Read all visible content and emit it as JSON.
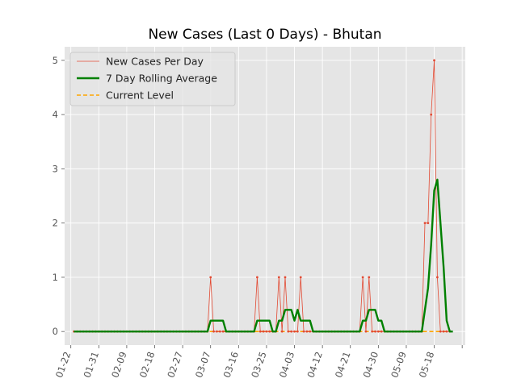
{
  "chart_data": {
    "type": "line",
    "title": "New Cases (Last 0 Days) - Bhutan",
    "xlabel": "",
    "ylabel": "",
    "x_tick_labels": [
      "01-22",
      "01-31",
      "02-09",
      "02-18",
      "02-27",
      "03-07",
      "03-16",
      "03-25",
      "04-03",
      "04-12",
      "04-21",
      "04-30",
      "05-09",
      "05-18"
    ],
    "y_tick_labels": [
      "0",
      "1",
      "2",
      "3",
      "4",
      "5"
    ],
    "x_range_days": [
      -3,
      126
    ],
    "ylim": [
      -0.25,
      5.25
    ],
    "grid": true,
    "legend_position": "upper-left",
    "series": [
      {
        "name": "New Cases Per Day",
        "color": "#e24a33",
        "style": "thin-line-with-dot-markers",
        "start_date": "01-22",
        "values": [
          0,
          0,
          0,
          0,
          0,
          0,
          0,
          0,
          0,
          0,
          0,
          0,
          0,
          0,
          0,
          0,
          0,
          0,
          0,
          0,
          0,
          0,
          0,
          0,
          0,
          0,
          0,
          0,
          0,
          0,
          0,
          0,
          0,
          0,
          0,
          0,
          0,
          0,
          0,
          0,
          0,
          0,
          0,
          0,
          1,
          0,
          0,
          0,
          0,
          0,
          0,
          0,
          0,
          0,
          0,
          0,
          0,
          0,
          0,
          1,
          0,
          0,
          0,
          0,
          0,
          0,
          1,
          0,
          1,
          0,
          0,
          0,
          0,
          1,
          0,
          0,
          0,
          0,
          0,
          0,
          0,
          0,
          0,
          0,
          0,
          0,
          0,
          0,
          0,
          0,
          0,
          0,
          0,
          1,
          0,
          1,
          0,
          0,
          0,
          0,
          0,
          0,
          0,
          0,
          0,
          0,
          0,
          0,
          0,
          0,
          0,
          0,
          0,
          2,
          2,
          4,
          5,
          1,
          0,
          0,
          0,
          0
        ]
      },
      {
        "name": "7 Day Rolling Average",
        "color": "#008000",
        "style": "thick-line",
        "start_date": "01-22",
        "values": [
          0,
          0,
          0,
          0,
          0,
          0,
          0,
          0,
          0,
          0,
          0,
          0,
          0,
          0,
          0,
          0,
          0,
          0,
          0,
          0,
          0,
          0,
          0,
          0,
          0,
          0,
          0,
          0,
          0,
          0,
          0,
          0,
          0,
          0,
          0,
          0,
          0,
          0,
          0,
          0,
          0,
          0,
          0,
          0,
          0.2,
          0.2,
          0.2,
          0.2,
          0.2,
          0,
          0,
          0,
          0,
          0,
          0,
          0,
          0,
          0,
          0,
          0.2,
          0.2,
          0.2,
          0.2,
          0.2,
          0,
          0,
          0.2,
          0.2,
          0.4,
          0.4,
          0.4,
          0.2,
          0.4,
          0.2,
          0.2,
          0.2,
          0.2,
          0,
          0,
          0,
          0,
          0,
          0,
          0,
          0,
          0,
          0,
          0,
          0,
          0,
          0,
          0,
          0,
          0.2,
          0.2,
          0.4,
          0.4,
          0.4,
          0.2,
          0.2,
          0,
          0,
          0,
          0,
          0,
          0,
          0,
          0,
          0,
          0,
          0,
          0,
          0,
          0.4,
          0.8,
          1.6,
          2.6,
          2.8,
          2.0,
          1.2,
          0.2,
          0,
          0
        ]
      },
      {
        "name": "Current Level",
        "color": "#ffa500",
        "style": "dashed-line",
        "start_date": "01-22",
        "constant": 0,
        "length": 122
      }
    ]
  }
}
